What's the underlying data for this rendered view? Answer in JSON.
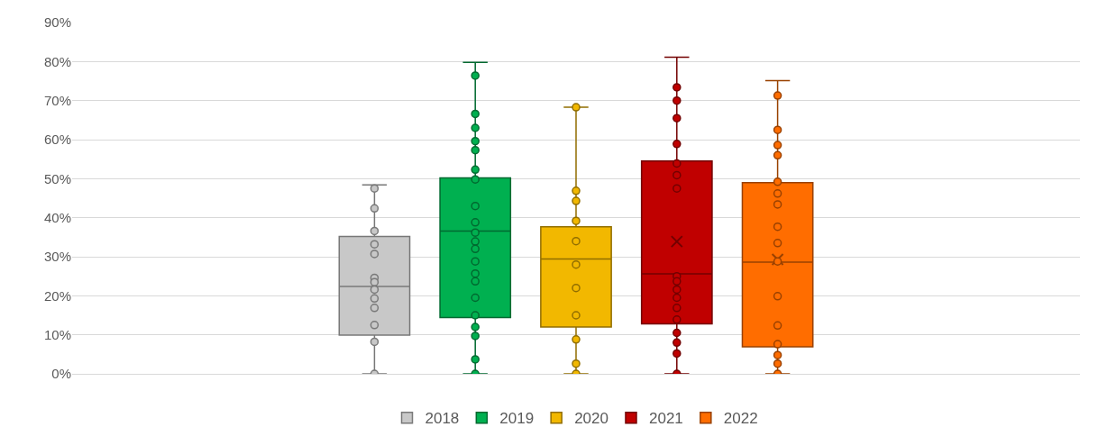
{
  "chart_data": {
    "type": "box",
    "categories": [
      null
    ],
    "ylim": [
      0,
      90
    ],
    "yticks": [
      {
        "value": 0,
        "label": "0%"
      },
      {
        "value": 10,
        "label": "10%"
      },
      {
        "value": 20,
        "label": "20%"
      },
      {
        "value": 30,
        "label": "30%"
      },
      {
        "value": 40,
        "label": "40%"
      },
      {
        "value": 50,
        "label": "50%"
      },
      {
        "value": 60,
        "label": "60%"
      },
      {
        "value": 70,
        "label": "70%"
      },
      {
        "value": 80,
        "label": "80%"
      },
      {
        "value": 90,
        "label": "90%"
      }
    ],
    "grid": "y",
    "legend": "bottom",
    "marker": "circle",
    "tick_labels": "y",
    "series": [
      {
        "name": "2018",
        "color": "#c8c8c8",
        "boxes": [
          {
            "low": 0,
            "q1": 9.9,
            "median": 22.4,
            "q3": 35.2,
            "high": 48.4,
            "outliers": [
              47.5,
              42.4,
              36.6,
              33.2,
              30.7,
              24.6,
              23.5,
              21.6,
              19.3,
              16.9,
              12.5,
              8.2,
              0
            ]
          }
        ]
      },
      {
        "name": "2019",
        "color": "#00b050",
        "boxes": [
          {
            "low": 0,
            "q1": 14.4,
            "median": 36.6,
            "q3": 50.2,
            "high": 79.8,
            "outliers": [
              76.4,
              66.6,
              63,
              59.6,
              57.3,
              52.3,
              49.8,
              43,
              38.8,
              36.2,
              33.9,
              32,
              28.8,
              25.7,
              23.7,
              19.5,
              15,
              12,
              9.7,
              3.7,
              0
            ]
          }
        ]
      },
      {
        "name": "2020",
        "color": "#f2b800",
        "boxes": [
          {
            "low": 0,
            "q1": 12,
            "median": 29.4,
            "q3": 37.7,
            "high": 68.3,
            "outliers": [
              68.3,
              46.9,
              44.3,
              39.2,
              34,
              28,
              22,
              15,
              8.8,
              2.6,
              0
            ]
          }
        ]
      },
      {
        "name": "2021",
        "color": "#c00000",
        "boxes": [
          {
            "low": 0,
            "q1": 12.8,
            "median": 25.6,
            "q3": 54.5,
            "high": 81.1,
            "mean": 33.9,
            "outliers": [
              73.4,
              70,
              65.5,
              58.9,
              53.9,
              50.9,
              47.5,
              25,
              23.7,
              21.6,
              19.5,
              16.9,
              13.9,
              10.5,
              8,
              5.2,
              0
            ]
          }
        ]
      },
      {
        "name": "2022",
        "color": "#ff6d00",
        "boxes": [
          {
            "low": 0,
            "q1": 6.9,
            "median": 28.6,
            "q3": 49,
            "high": 75.1,
            "mean": 29.3,
            "outliers": [
              71.3,
              62.5,
              58.6,
              56,
              49.2,
              46.2,
              43.4,
              37.7,
              33.5,
              28.8,
              19.9,
              12.4,
              7.6,
              4.8,
              2.6,
              0
            ]
          }
        ]
      }
    ]
  }
}
